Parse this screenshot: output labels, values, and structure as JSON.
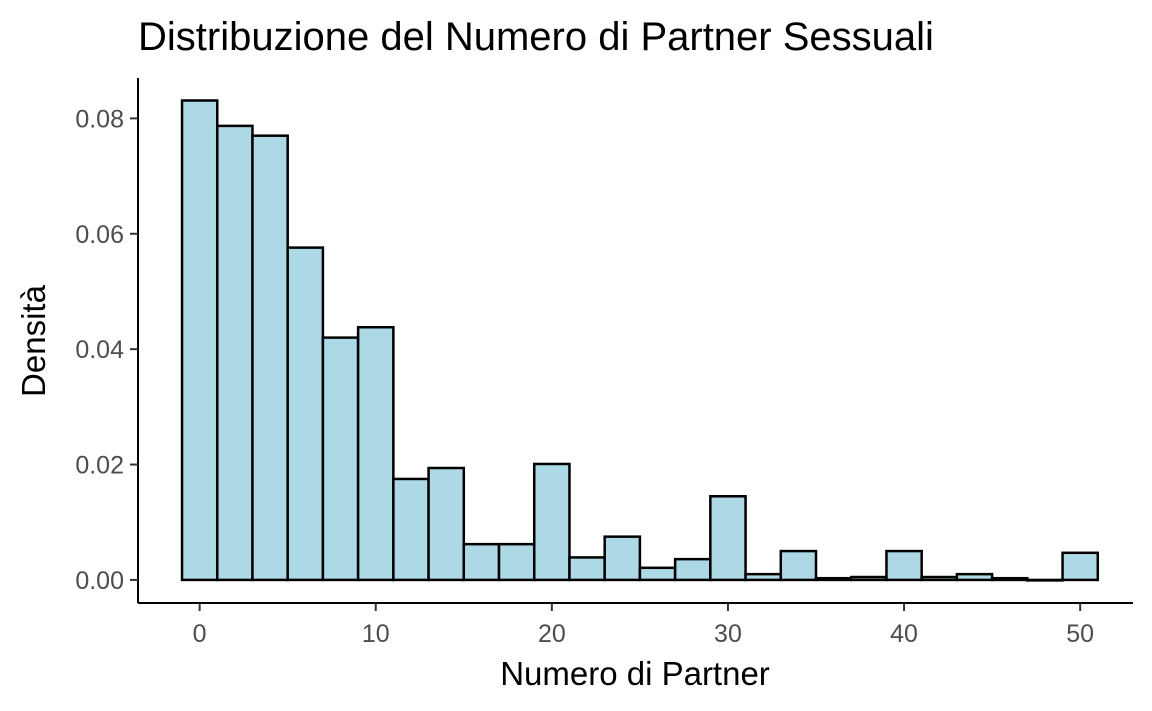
{
  "chart_data": {
    "type": "bar",
    "title": "Distribuzione del Numero di Partner Sessuali",
    "xlabel": "Numero di Partner",
    "ylabel": "Densità",
    "xlim": [
      -3.5,
      53.0
    ],
    "ylim": [
      -0.004,
      0.087
    ],
    "x_ticks": [
      0,
      10,
      20,
      30,
      40,
      50
    ],
    "y_ticks": [
      0.0,
      0.02,
      0.04,
      0.06,
      0.08
    ],
    "x_tick_labels": [
      "0",
      "10",
      "20",
      "30",
      "40",
      "50"
    ],
    "y_tick_labels": [
      "0.00",
      "0.02",
      "0.04",
      "0.06",
      "0.08"
    ],
    "bin_width": 2,
    "bin_starts": [
      -1,
      1,
      3,
      5,
      7,
      9,
      11,
      13,
      15,
      17,
      19,
      21,
      23,
      25,
      27,
      29,
      31,
      33,
      35,
      37,
      39,
      41,
      43,
      45,
      47,
      49
    ],
    "values": [
      0.0831,
      0.0787,
      0.077,
      0.0576,
      0.042,
      0.0438,
      0.0175,
      0.0194,
      0.0062,
      0.0062,
      0.0201,
      0.0039,
      0.0075,
      0.0021,
      0.0036,
      0.0145,
      0.001,
      0.005,
      0.0003,
      0.0005,
      0.005,
      0.0005,
      0.001,
      0.0003,
      0.0,
      0.0047
    ],
    "bar_fill": "#add8e6",
    "bar_edge": "#000000",
    "grid": false,
    "legend": "none"
  }
}
